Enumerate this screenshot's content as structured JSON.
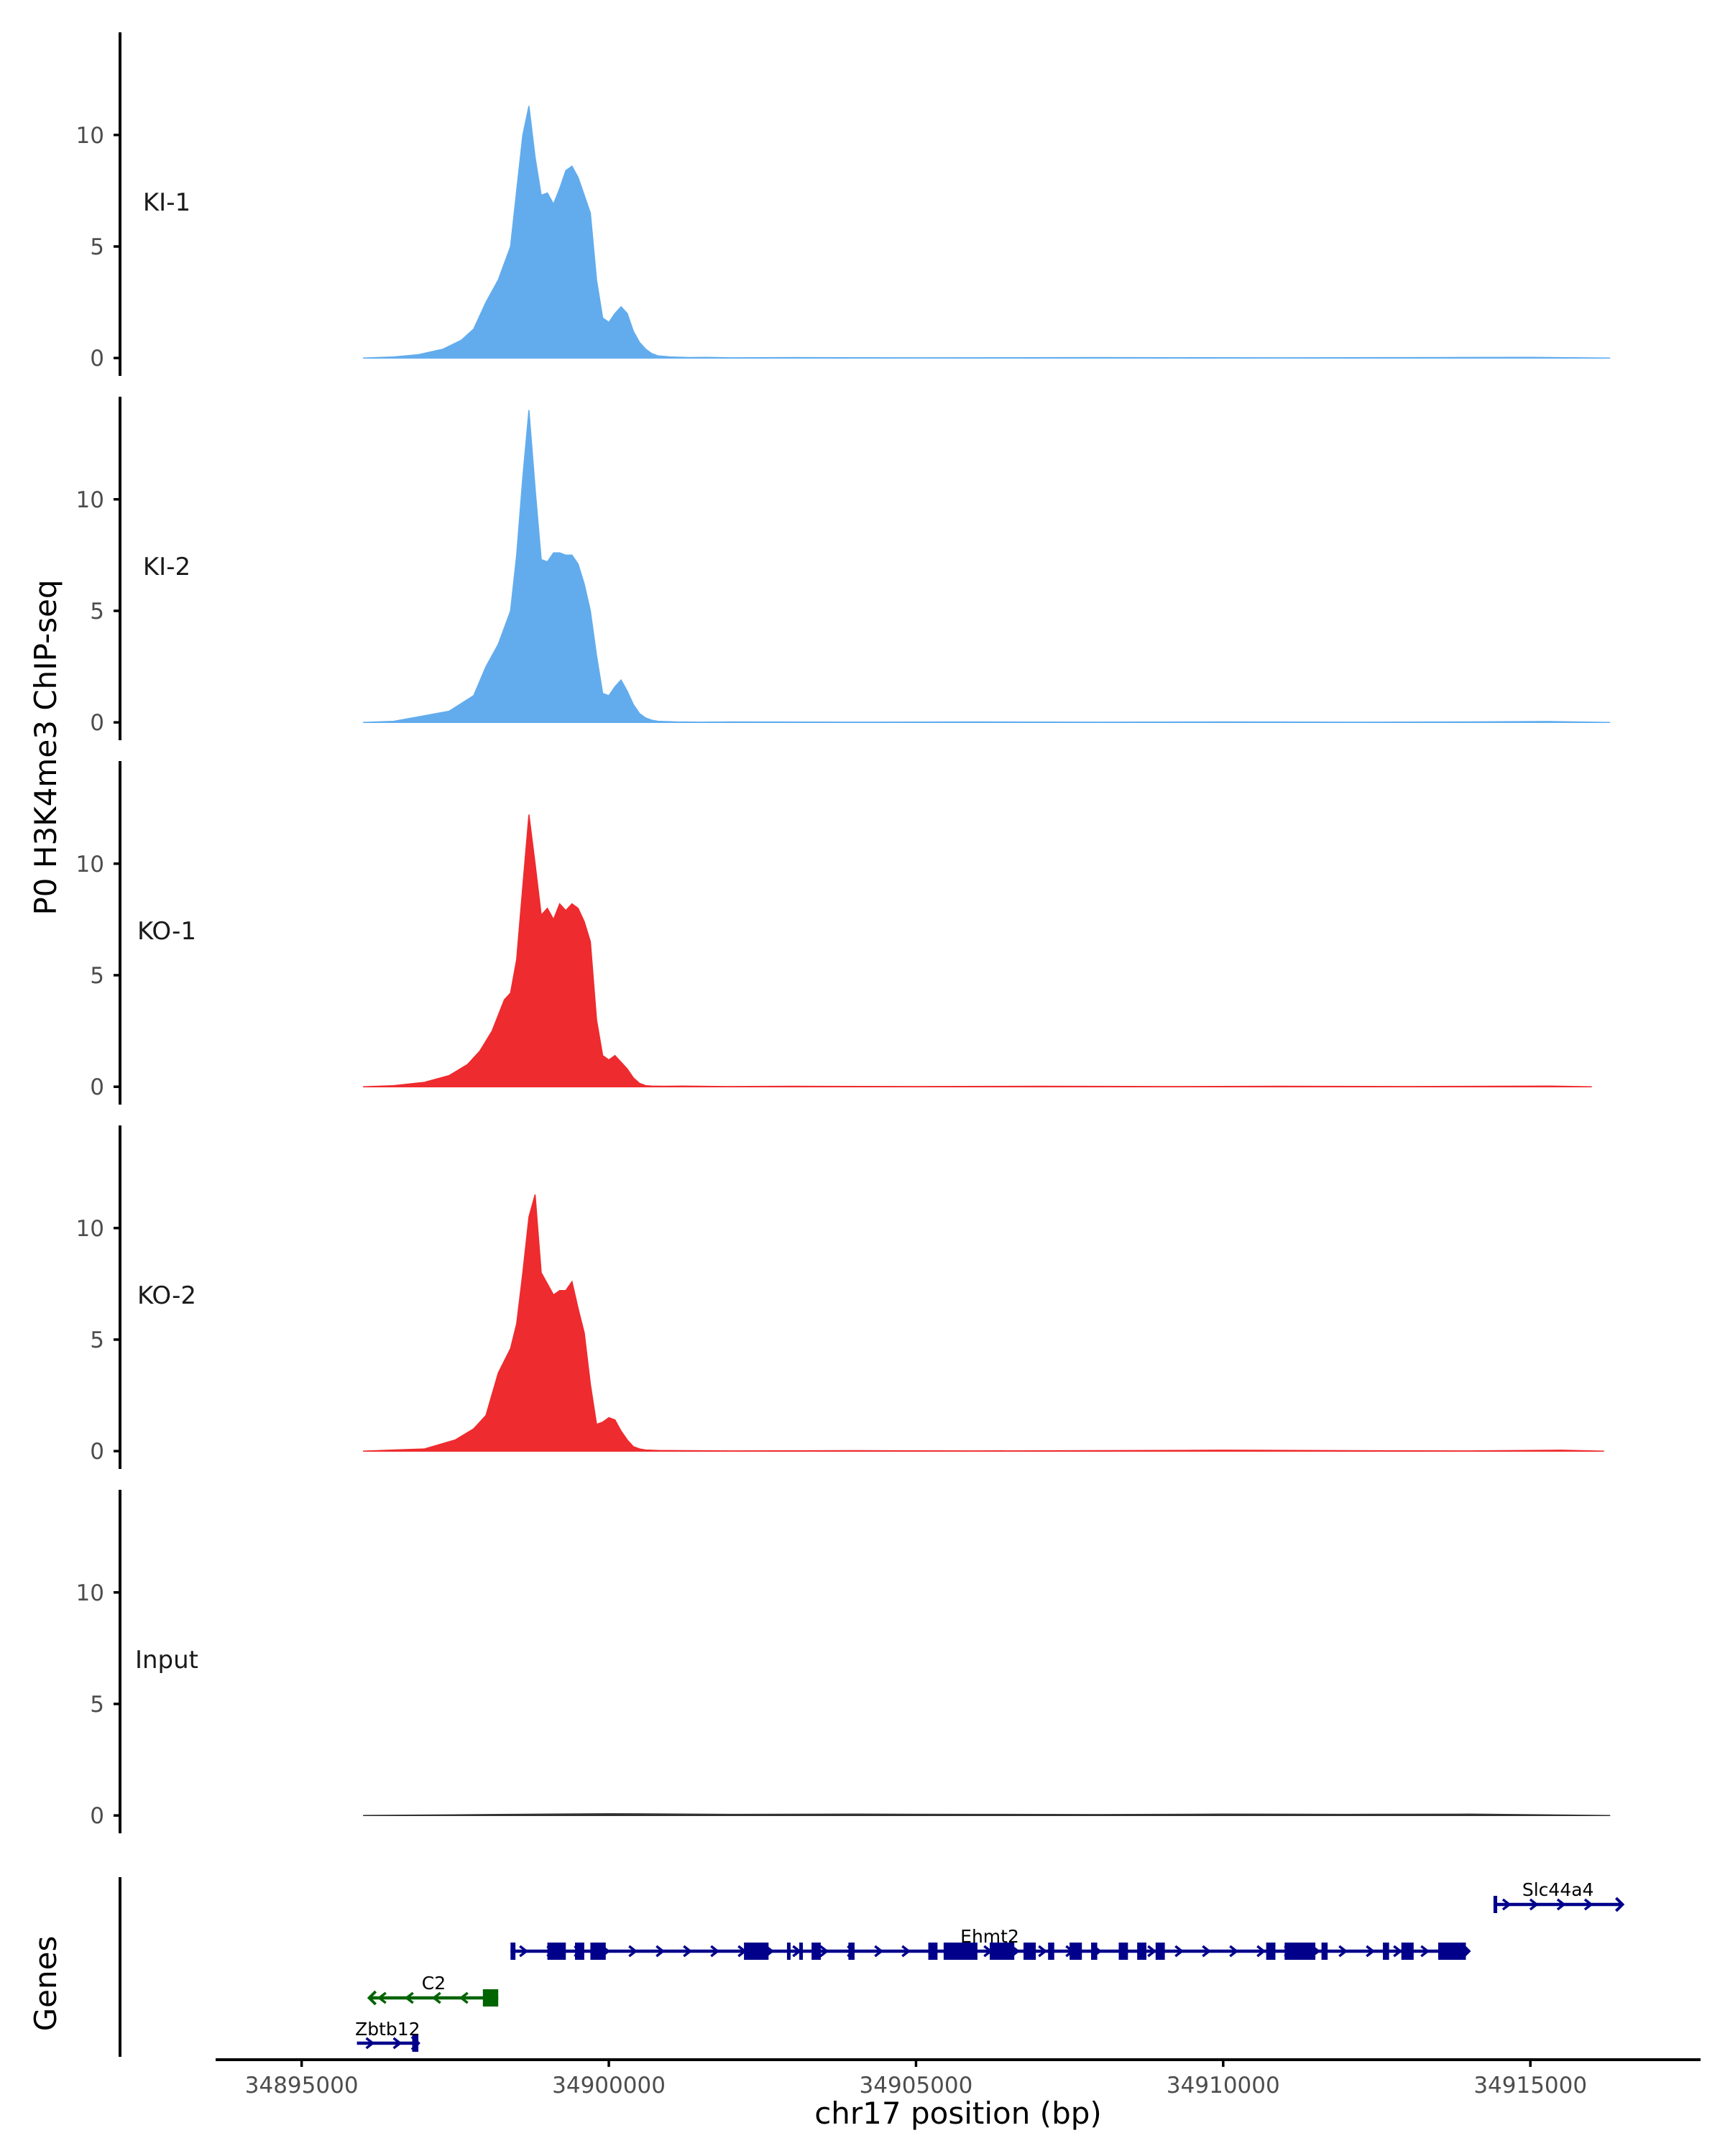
{
  "chart_data": {
    "type": "area",
    "ylabel": "P0 H3K4me3 ChIP-seq",
    "xlabel": "chr17 position (bp)",
    "xlim": [
      34893600,
      34917700
    ],
    "ylim": [
      -0.8,
      14.6
    ],
    "x_ticks": [
      "34895000",
      "34900000",
      "34905000",
      "34910000",
      "34915000"
    ],
    "x_tick_values": [
      34895000,
      34900000,
      34905000,
      34910000,
      34915000
    ],
    "y_ticks": [
      "0",
      "5",
      "10"
    ],
    "y_tick_values": [
      0,
      5,
      10
    ],
    "colors": {
      "KI": "#62aced",
      "KO": "#ee2b2e",
      "Input": "#333333",
      "gene_plus": "#00008b",
      "gene_minus": "#006400"
    },
    "tracks": [
      {
        "label": "KI-1",
        "color": "#62aced",
        "x": [
          34896000,
          34896500,
          34896900,
          34897300,
          34897600,
          34897800,
          34898000,
          34898200,
          34898400,
          34898500,
          34898600,
          34898700,
          34898800,
          34898900,
          34899000,
          34899100,
          34899200,
          34899300,
          34899400,
          34899500,
          34899600,
          34899700,
          34899800,
          34899900,
          34900000,
          34900100,
          34900200,
          34900300,
          34900400,
          34900500,
          34900600,
          34900700,
          34900800,
          34901000,
          34901300,
          34901600,
          34902000,
          34903000,
          34905000,
          34908000,
          34911000,
          34913500,
          34915000,
          34916300
        ],
        "y": [
          0,
          0.05,
          0.15,
          0.4,
          0.8,
          1.3,
          2.5,
          3.5,
          5,
          7.5,
          10,
          11.3,
          9,
          7.3,
          7.4,
          6.9,
          7.6,
          8.4,
          8.6,
          8.1,
          7.3,
          6.5,
          3.5,
          1.8,
          1.6,
          2,
          2.3,
          2,
          1.2,
          0.7,
          0.4,
          0.2,
          0.1,
          0.05,
          0.02,
          0.03,
          0.01,
          0.02,
          0.01,
          0.02,
          0.01,
          0.02,
          0.03,
          0
        ]
      },
      {
        "label": "KI-2",
        "color": "#62aced",
        "x": [
          34896000,
          34896500,
          34897000,
          34897400,
          34897800,
          34898000,
          34898200,
          34898400,
          34898500,
          34898600,
          34898700,
          34898800,
          34898900,
          34899000,
          34899100,
          34899200,
          34899300,
          34899400,
          34899500,
          34899600,
          34899700,
          34899800,
          34899900,
          34900000,
          34900100,
          34900200,
          34900300,
          34900400,
          34900500,
          34900600,
          34900700,
          34900800,
          34901100,
          34901500,
          34902000,
          34904000,
          34906000,
          34908000,
          34910000,
          34912000,
          34914000,
          34915300,
          34916300
        ],
        "y": [
          0,
          0.05,
          0.3,
          0.5,
          1.2,
          2.5,
          3.5,
          5,
          7.5,
          11,
          14,
          10.5,
          7.3,
          7.2,
          7.6,
          7.6,
          7.5,
          7.5,
          7.1,
          6.2,
          5,
          3,
          1.3,
          1.2,
          1.6,
          1.9,
          1.4,
          0.8,
          0.4,
          0.2,
          0.1,
          0.05,
          0.02,
          0.01,
          0.02,
          0.01,
          0.02,
          0.01,
          0.02,
          0.01,
          0.02,
          0.04,
          0
        ]
      },
      {
        "label": "KO-1",
        "color": "#ee2b2e",
        "x": [
          34896000,
          34896500,
          34897000,
          34897400,
          34897700,
          34897900,
          34898100,
          34898300,
          34898400,
          34898500,
          34898600,
          34898700,
          34898800,
          34898900,
          34899000,
          34899100,
          34899200,
          34899300,
          34899400,
          34899500,
          34899600,
          34899700,
          34899800,
          34899900,
          34900000,
          34900100,
          34900200,
          34900300,
          34900400,
          34900500,
          34900600,
          34900700,
          34900900,
          34901200,
          34901900,
          34903000,
          34905000,
          34907000,
          34909000,
          34911000,
          34913000,
          34915300,
          34916000
        ],
        "y": [
          0,
          0.05,
          0.2,
          0.5,
          1,
          1.6,
          2.5,
          3.9,
          4.2,
          5.7,
          9,
          12.2,
          10,
          7.7,
          8,
          7.5,
          8.2,
          7.9,
          8.2,
          8,
          7.4,
          6.5,
          3,
          1.4,
          1.2,
          1.4,
          1.1,
          0.8,
          0.4,
          0.15,
          0.05,
          0.03,
          0.02,
          0.03,
          0.01,
          0.02,
          0.01,
          0.02,
          0.01,
          0.02,
          0.01,
          0.03,
          0
        ]
      },
      {
        "label": "KO-2",
        "color": "#ee2b2e",
        "x": [
          34896000,
          34896500,
          34897000,
          34897500,
          34897800,
          34898000,
          34898200,
          34898400,
          34898500,
          34898600,
          34898700,
          34898800,
          34898900,
          34899000,
          34899100,
          34899200,
          34899300,
          34899400,
          34899500,
          34899600,
          34899700,
          34899800,
          34899900,
          34900000,
          34900100,
          34900200,
          34900300,
          34900400,
          34900500,
          34900600,
          34900800,
          34901200,
          34902000,
          34904000,
          34906000,
          34908000,
          34910000,
          34912000,
          34914000,
          34915500,
          34916200
        ],
        "y": [
          0,
          0.05,
          0.1,
          0.5,
          1,
          1.6,
          3.5,
          4.6,
          5.7,
          8,
          10.5,
          11.5,
          8,
          7.5,
          7,
          7.2,
          7.2,
          7.6,
          6.4,
          5.3,
          3,
          1.2,
          1.3,
          1.5,
          1.4,
          0.9,
          0.5,
          0.2,
          0.1,
          0.05,
          0.03,
          0.02,
          0.01,
          0.02,
          0.01,
          0.02,
          0.04,
          0.02,
          0.01,
          0.04,
          0
        ]
      },
      {
        "label": "Input",
        "color": "#333333",
        "x": [
          34896000,
          34898000,
          34900000,
          34902000,
          34904000,
          34906000,
          34908000,
          34910000,
          34912000,
          34914000,
          34916300
        ],
        "y": [
          0,
          0.04,
          0.08,
          0.05,
          0.06,
          0.05,
          0.04,
          0.06,
          0.05,
          0.06,
          0
        ]
      }
    ],
    "genes_track": {
      "title": "Genes",
      "genes": [
        {
          "name": "Slc44a4",
          "strand": "+",
          "row": 0,
          "start": 34914400,
          "end": 34916500,
          "exons": [
            [
              34914400,
              34914460
            ]
          ],
          "color": "#00008b"
        },
        {
          "name": "Ehmt2",
          "strand": "+",
          "row": 1,
          "start": 34898400,
          "end": 34914000,
          "exons": [
            [
              34898400,
              34898480
            ],
            [
              34899000,
              34899300
            ],
            [
              34899450,
              34899600
            ],
            [
              34899700,
              34899950
            ],
            [
              34902200,
              34902600
            ],
            [
              34902900,
              34902950
            ],
            [
              34903100,
              34903150
            ],
            [
              34903300,
              34903450
            ],
            [
              34903900,
              34904000
            ],
            [
              34905200,
              34905350
            ],
            [
              34905450,
              34906000
            ],
            [
              34906200,
              34906600
            ],
            [
              34906750,
              34906950
            ],
            [
              34907150,
              34907250
            ],
            [
              34907500,
              34907700
            ],
            [
              34907850,
              34907950
            ],
            [
              34908300,
              34908450
            ],
            [
              34908600,
              34908750
            ],
            [
              34908900,
              34909050
            ],
            [
              34910700,
              34910850
            ],
            [
              34911000,
              34911500
            ],
            [
              34911600,
              34911700
            ],
            [
              34912600,
              34912700
            ],
            [
              34912900,
              34913100
            ],
            [
              34913500,
              34913950
            ]
          ],
          "color": "#00008b"
        },
        {
          "name": "C2",
          "strand": "-",
          "row": 2,
          "start": 34896100,
          "end": 34898200,
          "exons": [
            [
              34897950,
              34898200
            ]
          ],
          "color": "#006400"
        },
        {
          "name": "Zbtb12",
          "strand": "+",
          "row": 3,
          "start": 34895900,
          "end": 34896900,
          "exons": [
            [
              34896800,
              34896900
            ]
          ],
          "color": "#00008b"
        }
      ]
    }
  }
}
